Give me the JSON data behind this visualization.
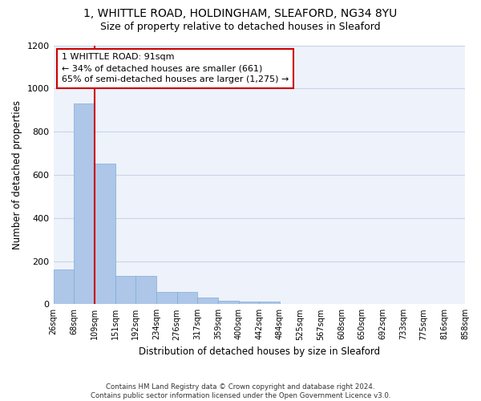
{
  "title_line1": "1, WHITTLE ROAD, HOLDINGHAM, SLEAFORD, NG34 8YU",
  "title_line2": "Size of property relative to detached houses in Sleaford",
  "xlabel": "Distribution of detached houses by size in Sleaford",
  "ylabel": "Number of detached properties",
  "bar_values": [
    160,
    930,
    650,
    130,
    130,
    57,
    57,
    30,
    15,
    12,
    12,
    0,
    0,
    0,
    0,
    0,
    0,
    0,
    0,
    0
  ],
  "categories": [
    "26sqm",
    "68sqm",
    "109sqm",
    "151sqm",
    "192sqm",
    "234sqm",
    "276sqm",
    "317sqm",
    "359sqm",
    "400sqm",
    "442sqm",
    "484sqm",
    "525sqm",
    "567sqm",
    "608sqm",
    "650sqm",
    "692sqm",
    "733sqm",
    "775sqm",
    "816sqm",
    "858sqm"
  ],
  "bar_color": "#aec6e8",
  "bar_edge_color": "#7aafd4",
  "vline_x": 2,
  "vline_color": "#cc0000",
  "annotation_text": "1 WHITTLE ROAD: 91sqm\n← 34% of detached houses are smaller (661)\n65% of semi-detached houses are larger (1,275) →",
  "annotation_box_color": "#ffffff",
  "annotation_box_edge": "#cc0000",
  "ylim": [
    0,
    1200
  ],
  "yticks": [
    0,
    200,
    400,
    600,
    800,
    1000,
    1200
  ],
  "grid_color": "#c8d4e8",
  "background_color": "#eef2fa",
  "footer_text": "Contains HM Land Registry data © Crown copyright and database right 2024.\nContains public sector information licensed under the Open Government Licence v3.0.",
  "title_fontsize": 10,
  "subtitle_fontsize": 9,
  "tick_fontsize": 7,
  "ylabel_fontsize": 8.5,
  "xlabel_fontsize": 8.5,
  "annotation_fontsize": 8
}
